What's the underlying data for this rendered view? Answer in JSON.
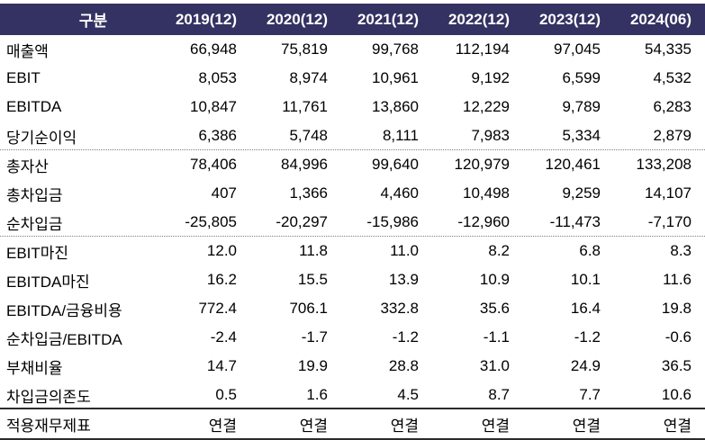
{
  "table": {
    "header": {
      "label": "구분",
      "columns": [
        "2019(12)",
        "2020(12)",
        "2021(12)",
        "2022(12)",
        "2023(12)",
        "2024(06)"
      ]
    },
    "groups": [
      {
        "separator_after": "dotted",
        "rows": [
          {
            "label": "매출액",
            "values": [
              "66,948",
              "75,819",
              "99,768",
              "112,194",
              "97,045",
              "54,335"
            ]
          },
          {
            "label": "EBIT",
            "values": [
              "8,053",
              "8,974",
              "10,961",
              "9,192",
              "6,599",
              "4,532"
            ]
          },
          {
            "label": "EBITDA",
            "values": [
              "10,847",
              "11,761",
              "13,860",
              "12,229",
              "9,789",
              "6,283"
            ]
          },
          {
            "label": "당기순이익",
            "values": [
              "6,386",
              "5,748",
              "8,111",
              "7,983",
              "5,334",
              "2,879"
            ]
          }
        ]
      },
      {
        "separator_after": "dotted",
        "rows": [
          {
            "label": "총자산",
            "values": [
              "78,406",
              "84,996",
              "99,640",
              "120,979",
              "120,461",
              "133,208"
            ]
          },
          {
            "label": "총차입금",
            "values": [
              "407",
              "1,366",
              "4,460",
              "10,498",
              "9,259",
              "14,107"
            ]
          },
          {
            "label": "순차입금",
            "values": [
              "-25,805",
              "-20,297",
              "-15,986",
              "-12,960",
              "-11,473",
              "-7,170"
            ]
          }
        ]
      },
      {
        "separator_after": "solid",
        "rows": [
          {
            "label": "EBIT마진",
            "values": [
              "12.0",
              "11.8",
              "11.0",
              "8.2",
              "6.8",
              "8.3"
            ]
          },
          {
            "label": "EBITDA마진",
            "values": [
              "16.2",
              "15.5",
              "13.9",
              "10.9",
              "10.1",
              "11.6"
            ]
          },
          {
            "label": "EBITDA/금융비용",
            "values": [
              "772.4",
              "706.1",
              "332.8",
              "35.6",
              "16.4",
              "19.8"
            ]
          },
          {
            "label": "순차입금/EBITDA",
            "values": [
              "-2.4",
              "-1.7",
              "-1.2",
              "-1.1",
              "-1.2",
              "-0.6"
            ]
          },
          {
            "label": "부채비율",
            "values": [
              "14.7",
              "19.9",
              "28.8",
              "31.0",
              "24.9",
              "36.5"
            ]
          },
          {
            "label": "차입금의존도",
            "values": [
              "0.5",
              "1.6",
              "4.5",
              "8.7",
              "7.7",
              "10.6"
            ]
          }
        ]
      },
      {
        "separator_after": "none",
        "rows": [
          {
            "label": "적용재무제표",
            "values": [
              "연결",
              "연결",
              "연결",
              "연결",
              "연결",
              "연결"
            ]
          }
        ]
      }
    ]
  },
  "colors": {
    "header_bg": "#343262",
    "header_text": "#ffffff",
    "body_text": "#000000",
    "dotted_rule": "#7d7d7d",
    "dark_rule": "#2b2b2b"
  }
}
